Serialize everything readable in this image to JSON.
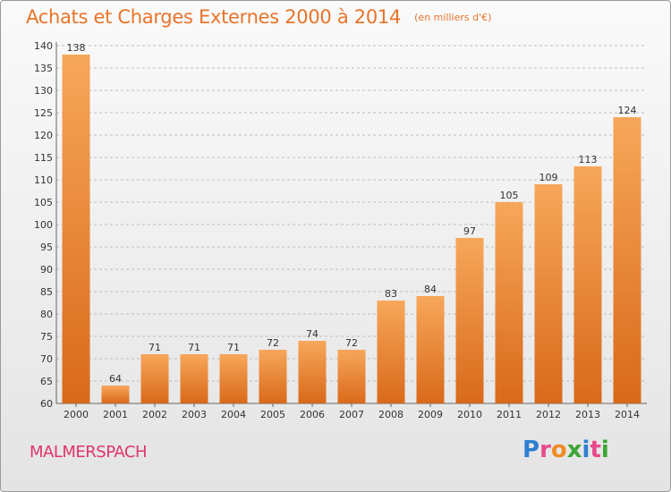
{
  "header": {
    "title": "Achats et Charges Externes 2000 à 2014",
    "unit": "(en milliers d'€)"
  },
  "footer": {
    "commune": "MALMERSPACH",
    "logo_letters": [
      "P",
      "r",
      "o",
      "x",
      "i",
      "t",
      "i"
    ],
    "logo_colors": [
      "#2f7fd1",
      "#e84b8a",
      "#f08a24",
      "#3aa635",
      "#2f7fd1",
      "#e84b8a",
      "#3aa635"
    ]
  },
  "colors": {
    "bar_light": "#f7a75a",
    "bar_dark": "#d9691a",
    "title": "#e8742a"
  },
  "chart_data": {
    "type": "bar",
    "categories": [
      "2000",
      "2001",
      "2002",
      "2003",
      "2004",
      "2005",
      "2006",
      "2007",
      "2008",
      "2009",
      "2010",
      "2011",
      "2012",
      "2013",
      "2014"
    ],
    "values": [
      138,
      64,
      71,
      71,
      71,
      72,
      74,
      72,
      83,
      84,
      97,
      105,
      109,
      113,
      124
    ],
    "title": "Achats et Charges Externes 2000 à 2014",
    "ylim": [
      60,
      140
    ],
    "yticks": [
      60,
      65,
      70,
      75,
      80,
      85,
      90,
      95,
      100,
      105,
      110,
      115,
      120,
      125,
      130,
      135,
      140
    ],
    "grid": true,
    "data_labels": true
  }
}
